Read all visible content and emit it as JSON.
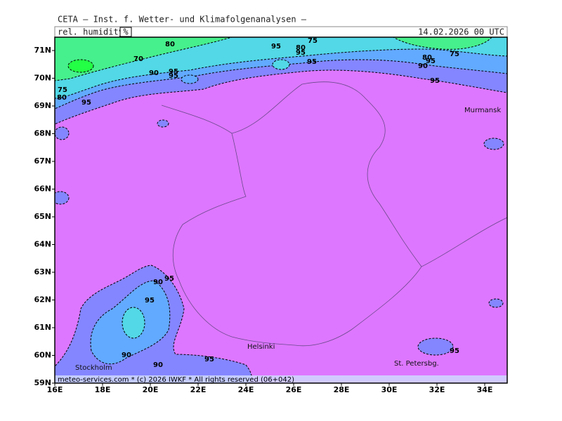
{
  "header": {
    "title": "CETA — Inst. f. Wetter- und Klimafolgenanalysen —",
    "parameter": "rel. humidity",
    "unit": "%",
    "valid_time": "14.02.2026 00 UTC"
  },
  "map": {
    "lat_labels": [
      {
        "value": 59,
        "label": "59N"
      },
      {
        "value": 60,
        "label": "60N"
      },
      {
        "value": 61,
        "label": "61N"
      },
      {
        "value": 62,
        "label": "62N"
      },
      {
        "value": 63,
        "label": "63N"
      },
      {
        "value": 64,
        "label": "64N"
      },
      {
        "value": 65,
        "label": "65N"
      },
      {
        "value": 66,
        "label": "66N"
      },
      {
        "value": 67,
        "label": "67N"
      },
      {
        "value": 68,
        "label": "68N"
      },
      {
        "value": 69,
        "label": "69N"
      },
      {
        "value": 70,
        "label": "70N"
      },
      {
        "value": 71,
        "label": "71N"
      }
    ],
    "lon_labels": [
      {
        "value": 16,
        "label": "16E"
      },
      {
        "value": 18,
        "label": "18E"
      },
      {
        "value": 20,
        "label": "20E"
      },
      {
        "value": 22,
        "label": "22E"
      },
      {
        "value": 24,
        "label": "24E"
      },
      {
        "value": 26,
        "label": "26E"
      },
      {
        "value": 28,
        "label": "28E"
      },
      {
        "value": 30,
        "label": "30E"
      },
      {
        "value": 32,
        "label": "32E"
      },
      {
        "value": 34,
        "label": "34E"
      }
    ],
    "places": [
      "Murmansk",
      "Helsinki",
      "St. Petersbg.",
      "Stockholm"
    ],
    "contour_labels": [
      80,
      70,
      75,
      95,
      80,
      95,
      95,
      75,
      80,
      95,
      90,
      95,
      95,
      95,
      90,
      75,
      80,
      95,
      90,
      95,
      95,
      90,
      90,
      95,
      95
    ],
    "footer": "meteo-services.com * (c) 2026 IWKF * All rights reserved (06+042)"
  }
}
